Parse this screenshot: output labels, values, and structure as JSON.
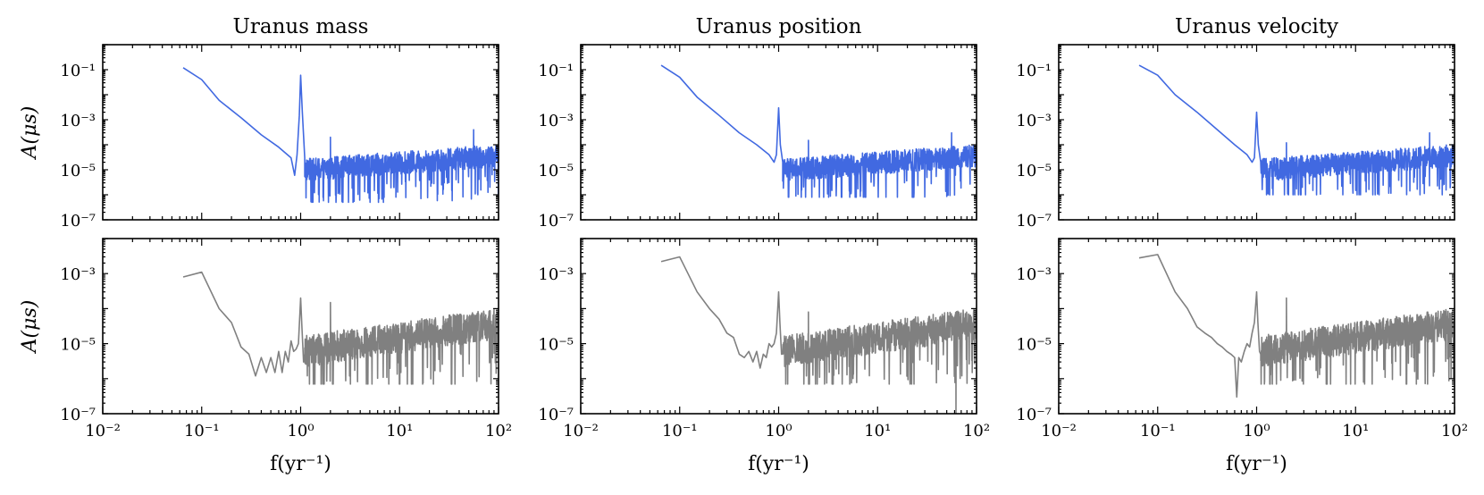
{
  "figure": {
    "xlabel": "f(yr⁻¹)",
    "ylabel": "A(μs)"
  },
  "chart_data": [
    {
      "type": "line",
      "title": "Uranus mass",
      "xlabel": "",
      "ylabel": "A(μs)",
      "xscale": "log",
      "yscale": "log",
      "xlim": [
        0.01,
        100
      ],
      "ylim": [
        1e-07,
        1
      ],
      "xticks": [
        "10⁻²",
        "10⁻¹",
        "10⁰",
        "10¹",
        "10²"
      ],
      "yticks": [
        "10⁻⁷",
        "10⁻⁵",
        "10⁻³",
        "10⁻¹"
      ],
      "color": "#4169e1",
      "grid": false,
      "series": [
        {
          "x": [
            0.065,
            0.1,
            0.15,
            0.25,
            0.4,
            0.6,
            0.8,
            0.87,
            0.92,
            0.97,
            1.0,
            1.04,
            1.1,
            1.2,
            1.4,
            1.6,
            1.9,
            2.0,
            2.1,
            2.3,
            3,
            5,
            10,
            20,
            50,
            56,
            60,
            100
          ],
          "y": [
            0.12,
            0.04,
            0.006,
            0.0012,
            0.00025,
            8e-05,
            3e-05,
            6e-06,
            4e-05,
            0.0015,
            0.06,
            0.002,
            3e-05,
            1.2e-05,
            8e-06,
            1e-05,
            2e-05,
            0.0002,
            2e-05,
            1.2e-05,
            9e-06,
            1.2e-05,
            2e-05,
            3e-05,
            5e-05,
            0.0004,
            5e-05,
            8e-05
          ]
        }
      ],
      "noise": {
        "x_start": 1.1,
        "x_end": 100,
        "base_start": 8e-06,
        "base_end": 3e-05,
        "low_floor": 5e-07
      }
    },
    {
      "type": "line",
      "title": "Uranus position",
      "xlabel": "",
      "ylabel": "",
      "xscale": "log",
      "yscale": "log",
      "xlim": [
        0.01,
        100
      ],
      "ylim": [
        1e-07,
        1
      ],
      "xticks": [
        "10⁻²",
        "10⁻¹",
        "10⁰",
        "10¹",
        "10²"
      ],
      "yticks": [
        "10⁻⁷",
        "10⁻⁵",
        "10⁻³",
        "10⁻¹"
      ],
      "color": "#4169e1",
      "grid": false,
      "series": [
        {
          "x": [
            0.065,
            0.1,
            0.15,
            0.25,
            0.4,
            0.6,
            0.8,
            0.9,
            0.95,
            1.0,
            1.04,
            1.1,
            1.2,
            1.5,
            1.9,
            2.0,
            2.1,
            2.4,
            3,
            5,
            10,
            20,
            50,
            56,
            60,
            100
          ],
          "y": [
            0.15,
            0.05,
            0.008,
            0.0015,
            0.0003,
            0.0001,
            4e-05,
            2e-05,
            4e-05,
            0.003,
            0.0001,
            2e-05,
            1.2e-05,
            1e-05,
            2e-05,
            0.00015,
            2e-05,
            1e-05,
            9e-06,
            1.2e-05,
            2e-05,
            3e-05,
            5e-05,
            0.0003,
            5e-05,
            8e-05
          ]
        }
      ],
      "noise": {
        "x_start": 1.1,
        "x_end": 100,
        "base_start": 8e-06,
        "base_end": 3e-05,
        "low_floor": 8e-07
      }
    },
    {
      "type": "line",
      "title": "Uranus velocity",
      "xlabel": "",
      "ylabel": "",
      "xscale": "log",
      "yscale": "log",
      "xlim": [
        0.01,
        100
      ],
      "ylim": [
        1e-07,
        1
      ],
      "xticks": [
        "10⁻²",
        "10⁻¹",
        "10⁰",
        "10¹",
        "10²"
      ],
      "yticks": [
        "10⁻⁷",
        "10⁻⁵",
        "10⁻³",
        "10⁻¹"
      ],
      "color": "#4169e1",
      "grid": false,
      "series": [
        {
          "x": [
            0.065,
            0.1,
            0.15,
            0.25,
            0.4,
            0.6,
            0.8,
            0.9,
            0.95,
            1.0,
            1.04,
            1.1,
            1.2,
            1.5,
            1.9,
            2.0,
            2.1,
            2.4,
            3,
            5,
            10,
            20,
            50,
            56,
            60,
            100
          ],
          "y": [
            0.15,
            0.06,
            0.01,
            0.002,
            0.0004,
            0.0001,
            4e-05,
            2e-05,
            3e-05,
            0.002,
            0.0001,
            2e-05,
            1.2e-05,
            1e-05,
            2e-05,
            0.00012,
            2e-05,
            1e-05,
            9e-06,
            1.2e-05,
            2e-05,
            3e-05,
            5e-05,
            0.0003,
            5e-05,
            8e-05
          ]
        }
      ],
      "noise": {
        "x_start": 1.1,
        "x_end": 100,
        "base_start": 8e-06,
        "base_end": 3e-05,
        "low_floor": 1e-06
      }
    },
    {
      "type": "line",
      "title": "",
      "xlabel": "f(yr⁻¹)",
      "ylabel": "A(μs)",
      "xscale": "log",
      "yscale": "log",
      "xlim": [
        0.01,
        100
      ],
      "ylim": [
        1e-07,
        0.01
      ],
      "xticks": [
        "10⁻²",
        "10⁻¹",
        "10⁰",
        "10¹",
        "10²"
      ],
      "yticks": [
        "10⁻⁷",
        "10⁻⁵",
        "10⁻³"
      ],
      "color": "#808080",
      "grid": false,
      "series": [
        {
          "x": [
            0.065,
            0.1,
            0.15,
            0.2,
            0.25,
            0.3,
            0.35,
            0.4,
            0.45,
            0.5,
            0.55,
            0.6,
            0.65,
            0.7,
            0.75,
            0.8,
            0.85,
            0.9,
            0.95,
            1.0,
            1.03,
            1.07,
            1.1,
            1.3,
            1.6,
            1.9,
            2.0,
            2.1,
            2.4,
            3,
            5,
            10,
            20,
            50,
            100
          ],
          "y": [
            0.0008,
            0.0011,
            0.0001,
            4e-05,
            8e-06,
            5e-06,
            1.2e-06,
            4e-06,
            1.5e-06,
            4e-06,
            1.5e-06,
            6e-06,
            1.5e-06,
            6e-06,
            3e-06,
            1.2e-05,
            6e-06,
            7e-06,
            1e-05,
            0.0002,
            3e-05,
            3e-06,
            5e-06,
            6e-06,
            8e-06,
            1e-05,
            0.00015,
            8e-06,
            6e-06,
            8e-06,
            1e-05,
            1.5e-05,
            2e-05,
            4e-05,
            8e-05
          ]
        }
      ],
      "noise": {
        "x_start": 1.1,
        "x_end": 100,
        "base_start": 5e-06,
        "base_end": 3e-05,
        "low_floor": 7e-07
      }
    },
    {
      "type": "line",
      "title": "",
      "xlabel": "f(yr⁻¹)",
      "ylabel": "",
      "xscale": "log",
      "yscale": "log",
      "xlim": [
        0.01,
        100
      ],
      "ylim": [
        1e-07,
        0.01
      ],
      "xticks": [
        "10⁻²",
        "10⁻¹",
        "10⁰",
        "10¹",
        "10²"
      ],
      "yticks": [
        "10⁻⁷",
        "10⁻⁵",
        "10⁻³"
      ],
      "color": "#808080",
      "grid": false,
      "series": [
        {
          "x": [
            0.065,
            0.1,
            0.15,
            0.2,
            0.25,
            0.3,
            0.35,
            0.4,
            0.45,
            0.5,
            0.55,
            0.6,
            0.65,
            0.7,
            0.75,
            0.8,
            0.85,
            0.9,
            0.95,
            1.0,
            1.03,
            1.07,
            1.1,
            1.4,
            1.9,
            2.0,
            2.1,
            2.5,
            3,
            5,
            10,
            20,
            50,
            60,
            62,
            100
          ],
          "y": [
            0.0022,
            0.003,
            0.0003,
            0.0001,
            5e-05,
            2e-05,
            1.5e-05,
            5e-06,
            4e-06,
            6e-06,
            3e-06,
            6e-06,
            2e-06,
            5e-06,
            4e-06,
            1e-05,
            8e-06,
            1e-05,
            2e-05,
            0.0003,
            4e-05,
            5e-06,
            6e-06,
            8e-06,
            1e-05,
            8e-05,
            8e-06,
            6e-06,
            7e-06,
            9e-06,
            1.2e-05,
            2e-05,
            4e-05,
            3e-05,
            1e-07,
            8e-05
          ]
        }
      ],
      "noise": {
        "x_start": 1.1,
        "x_end": 100,
        "base_start": 5e-06,
        "base_end": 3e-05,
        "low_floor": 7e-07
      }
    },
    {
      "type": "line",
      "title": "",
      "xlabel": "f(yr⁻¹)",
      "ylabel": "",
      "xscale": "log",
      "yscale": "log",
      "xlim": [
        0.01,
        100
      ],
      "ylim": [
        1e-07,
        0.01
      ],
      "xticks": [
        "10⁻²",
        "10⁻¹",
        "10⁰",
        "10¹",
        "10²"
      ],
      "yticks": [
        "10⁻⁷",
        "10⁻⁵",
        "10⁻³"
      ],
      "color": "#808080",
      "grid": false,
      "series": [
        {
          "x": [
            0.065,
            0.1,
            0.15,
            0.2,
            0.25,
            0.3,
            0.35,
            0.4,
            0.45,
            0.5,
            0.55,
            0.6,
            0.63,
            0.66,
            0.7,
            0.75,
            0.8,
            0.85,
            0.9,
            0.95,
            1.0,
            1.03,
            1.07,
            1.1,
            1.4,
            1.9,
            2.0,
            2.1,
            2.5,
            3,
            5,
            10,
            20,
            50,
            100
          ],
          "y": [
            0.0028,
            0.0035,
            0.0003,
            0.0001,
            3e-05,
            2e-05,
            1.5e-05,
            1e-05,
            8e-06,
            6e-06,
            5e-06,
            4e-06,
            3e-07,
            4e-06,
            3e-06,
            6e-06,
            1e-05,
            8e-06,
            2e-05,
            4e-05,
            0.0003,
            4e-05,
            6e-06,
            5e-06,
            7e-06,
            1e-05,
            0.0002,
            8e-06,
            6e-06,
            7e-06,
            9e-06,
            1.2e-05,
            2e-05,
            4e-05,
            8e-05
          ]
        }
      ],
      "noise": {
        "x_start": 1.1,
        "x_end": 100,
        "base_start": 5e-06,
        "base_end": 3e-05,
        "low_floor": 7e-07
      }
    }
  ]
}
